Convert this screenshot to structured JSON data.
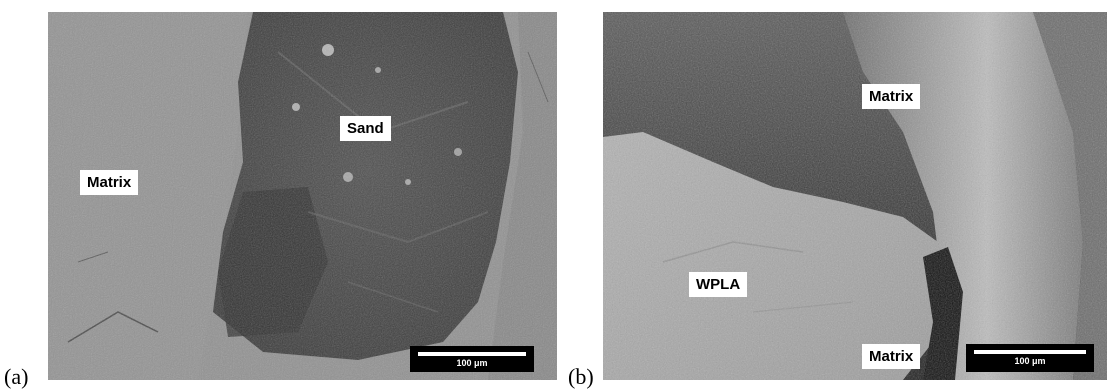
{
  "figure": {
    "panels": [
      {
        "letter": "(a)",
        "labels": {
          "matrix": "Matrix",
          "sand": "Sand"
        },
        "scale_bar": "100 μm"
      },
      {
        "letter": "(b)",
        "labels": {
          "matrix_top": "Matrix",
          "wpla": "WPLA",
          "matrix_bottom": "Matrix"
        },
        "scale_bar": "100 μm"
      }
    ]
  }
}
